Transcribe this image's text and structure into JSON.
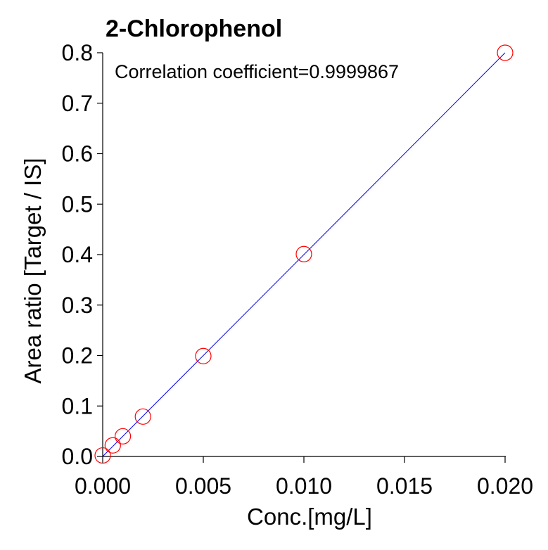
{
  "chart_data": {
    "type": "scatter",
    "title": "2-Chlorophenol",
    "annotation": "Correlation coefficient=0.9999867",
    "xlabel": "Conc.[mg/L]",
    "ylabel": "Area ratio [Target / IS]",
    "xlim": [
      0.0,
      0.02
    ],
    "ylim": [
      0.0,
      0.8
    ],
    "x_ticks": [
      "0.000",
      "0.005",
      "0.010",
      "0.015",
      "0.020"
    ],
    "y_ticks": [
      "0.0",
      "0.1",
      "0.2",
      "0.3",
      "0.4",
      "0.5",
      "0.6",
      "0.7",
      "0.8"
    ],
    "grid": false,
    "series": [
      {
        "marker": "open-circle",
        "color": "#ff0000",
        "x": [
          0.0,
          0.0005,
          0.001,
          0.002,
          0.005,
          0.01,
          0.02
        ],
        "y": [
          0.002,
          0.022,
          0.04,
          0.079,
          0.199,
          0.401,
          0.8
        ]
      }
    ],
    "fit_line": {
      "type": "linear",
      "color": "#0000ff",
      "x": [
        0.0,
        0.02
      ],
      "y": [
        0.0,
        0.8
      ]
    }
  }
}
